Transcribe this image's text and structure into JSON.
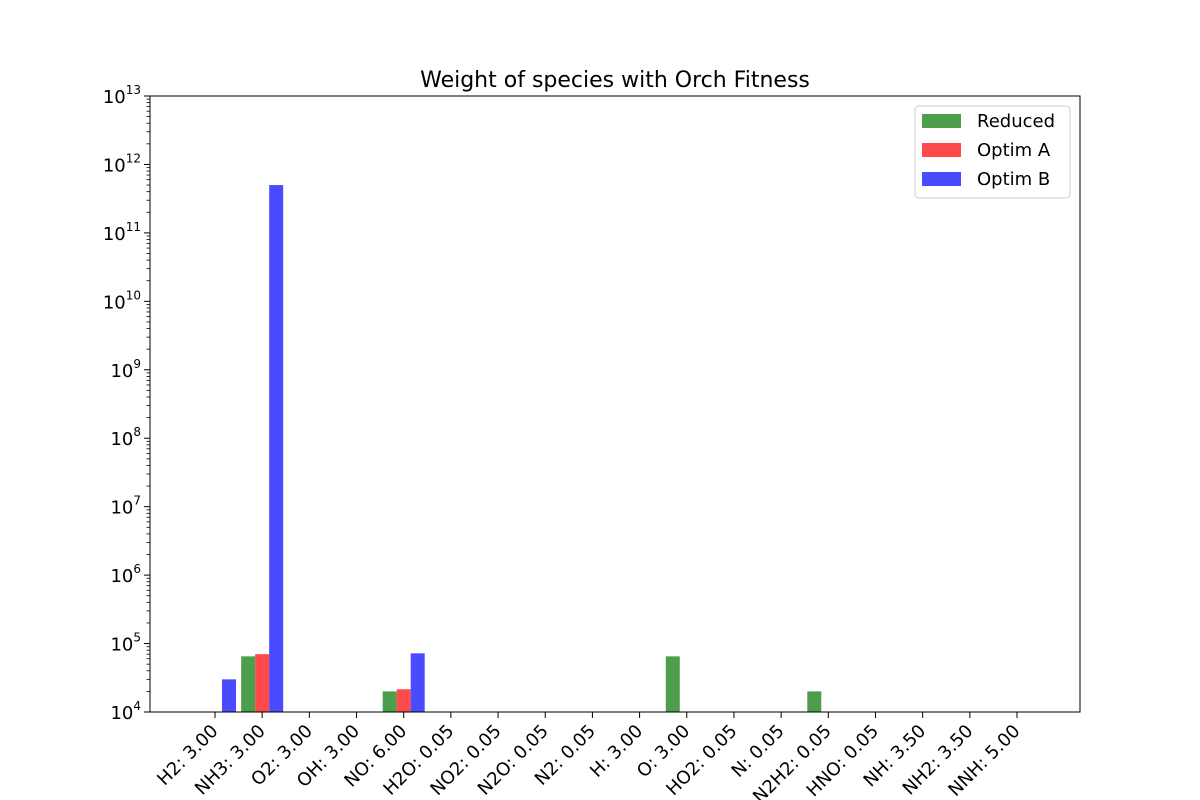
{
  "chart_data": {
    "type": "bar",
    "title": "Weight of species with Orch Fitness",
    "xlabel": "",
    "ylabel": "",
    "yscale": "log",
    "ylim": [
      10000,
      10000000000000
    ],
    "y_ticks": [
      {
        "base": "10",
        "exp": "4",
        "value": 10000
      },
      {
        "base": "10",
        "exp": "5",
        "value": 100000
      },
      {
        "base": "10",
        "exp": "6",
        "value": 1000000
      },
      {
        "base": "10",
        "exp": "7",
        "value": 10000000
      },
      {
        "base": "10",
        "exp": "8",
        "value": 100000000
      },
      {
        "base": "10",
        "exp": "9",
        "value": 1000000000
      },
      {
        "base": "10",
        "exp": "10",
        "value": 10000000000
      },
      {
        "base": "10",
        "exp": "11",
        "value": 100000000000
      },
      {
        "base": "10",
        "exp": "12",
        "value": 1000000000000
      },
      {
        "base": "10",
        "exp": "13",
        "value": 10000000000000
      }
    ],
    "categories": [
      "H2: 3.00",
      "NH3: 3.00",
      "O2: 3.00",
      "OH: 3.00",
      "NO: 6.00",
      "H2O: 0.05",
      "NO2: 0.05",
      "N2O: 0.05",
      "N2: 0.05",
      "H: 3.00",
      "O: 3.00",
      "HO2: 0.05",
      "N: 0.05",
      "N2H2: 0.05",
      "HNO: 0.05",
      "NH: 3.50",
      "NH2: 3.50",
      "NNH: 5.00"
    ],
    "series": [
      {
        "name": "Reduced",
        "color": "#4c9e4c",
        "values": [
          null,
          65000,
          null,
          null,
          20000,
          null,
          null,
          null,
          null,
          null,
          65000,
          null,
          null,
          20000,
          null,
          null,
          null,
          null
        ]
      },
      {
        "name": "Optim A",
        "color": "#ff4a4a",
        "values": [
          null,
          70000,
          null,
          null,
          21500,
          null,
          null,
          null,
          null,
          null,
          null,
          null,
          null,
          null,
          null,
          null,
          null,
          null
        ]
      },
      {
        "name": "Optim B",
        "color": "#4a4aff",
        "values": [
          30000,
          500000000000,
          null,
          null,
          72000,
          null,
          null,
          null,
          null,
          null,
          null,
          null,
          null,
          null,
          null,
          null,
          null,
          null
        ]
      }
    ],
    "legend": {
      "placement": "top-right"
    },
    "grid": false
  }
}
